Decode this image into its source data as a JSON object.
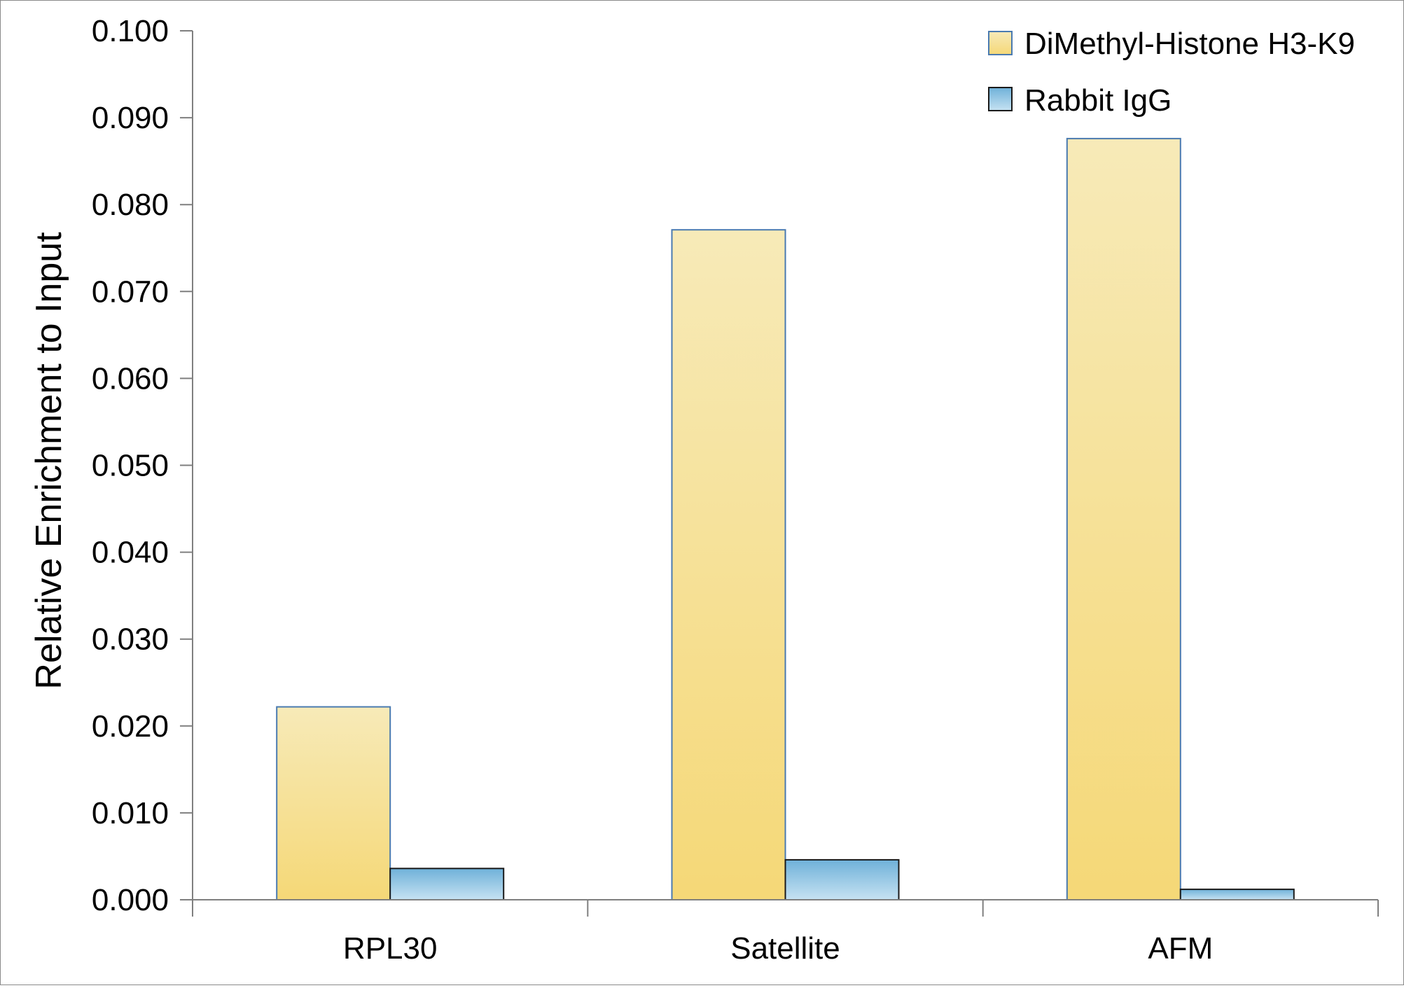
{
  "chart_data": {
    "type": "bar",
    "title": "",
    "xlabel": "",
    "ylabel": "Relative Enrichment to Input",
    "categories": [
      "RPL30",
      "Satellite",
      "AFM"
    ],
    "series": [
      {
        "name": "DiMethyl-Histone H3-K9",
        "values": [
          0.0222,
          0.0771,
          0.0876
        ],
        "color_top": "#f7eab8",
        "color_bottom": "#f5d877",
        "stroke": "#4a7ab0"
      },
      {
        "name": "Rabbit IgG",
        "values": [
          0.0036,
          0.0046,
          0.0012
        ],
        "color_top": "#6fb1d9",
        "color_bottom": "#c6e2f2",
        "stroke": "#1a1a1a"
      }
    ],
    "ylim": [
      0,
      0.1
    ],
    "yticks": [
      "0.000",
      "0.010",
      "0.020",
      "0.030",
      "0.040",
      "0.050",
      "0.060",
      "0.070",
      "0.080",
      "0.090",
      "0.100"
    ],
    "grid": false,
    "legend_position": "top-right"
  }
}
